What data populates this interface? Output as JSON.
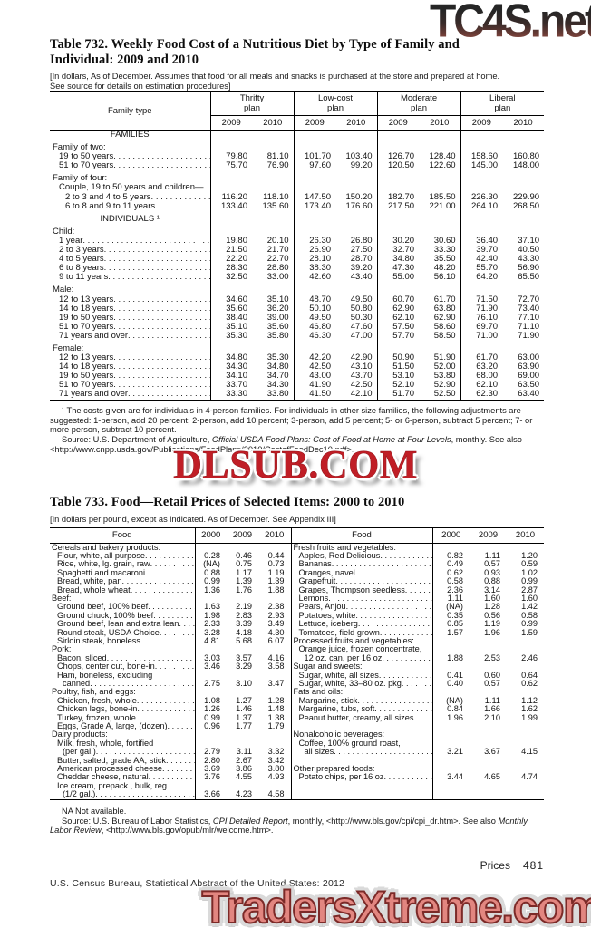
{
  "watermarks": {
    "top": "TC4S.net",
    "middle": "DLSUB.COM",
    "bottom": "TradersXtreme.com"
  },
  "colors": {
    "dlsub_red": "#c01e26",
    "traders_fill": "#e28680",
    "traders_stroke": "#7c2a28",
    "tc4s_top": "#262626",
    "tc4s_bottom": "#91524a"
  },
  "table732": {
    "title_l1": "Table 732. Weekly Food Cost of a Nutritious Diet by Type of Family and",
    "title_l2": "Individual: 2009 and 2010",
    "note_l1": "[In dollars, As of December. Assumes that food for all meals and snacks is purchased at the store and prepared at home.",
    "note_l2": "See source for details on estimation procedures]",
    "stub_header": "Family type",
    "col_groups": [
      {
        "line1": "Thrifty",
        "line2": "plan"
      },
      {
        "line1": "Low-cost",
        "line2": "plan"
      },
      {
        "line1": "Moderate",
        "line2": "plan"
      },
      {
        "line1": "Liberal",
        "line2": "plan"
      }
    ],
    "years": [
      "2009",
      "2010"
    ],
    "rows": [
      {
        "t": "center",
        "label": "FAMILIES"
      },
      {
        "t": "gap"
      },
      {
        "t": "cat",
        "label": "Family of two:",
        "ind": 0
      },
      {
        "t": "item",
        "label": "19 to 50 years",
        "ind": 1,
        "v": [
          "79.80",
          "81.10",
          "101.70",
          "103.40",
          "126.70",
          "128.40",
          "158.60",
          "160.80"
        ]
      },
      {
        "t": "item",
        "label": "51 to 70 years",
        "ind": 1,
        "v": [
          "75.70",
          "76.90",
          "97.60",
          "99.20",
          "120.50",
          "122.60",
          "145.00",
          "148.00"
        ]
      },
      {
        "t": "gap"
      },
      {
        "t": "cat",
        "label": "Family of four:",
        "ind": 0
      },
      {
        "t": "cat",
        "label": "Couple, 19 to 50 years and children—",
        "ind": 1
      },
      {
        "t": "item",
        "label": "2 to 3 and 4 to 5 years",
        "ind": 2,
        "v": [
          "116.20",
          "118.10",
          "147.50",
          "150.20",
          "182.70",
          "185.50",
          "226.30",
          "229.90"
        ]
      },
      {
        "t": "item",
        "label": "6 to 8 and 9 to 11 years",
        "ind": 2,
        "v": [
          "133.40",
          "135.60",
          "173.40",
          "176.60",
          "217.50",
          "221.00",
          "264.10",
          "268.50"
        ]
      },
      {
        "t": "gap"
      },
      {
        "t": "center",
        "label": "INDIVIDUALS ¹"
      },
      {
        "t": "gap"
      },
      {
        "t": "cat",
        "label": "Child:",
        "ind": 0
      },
      {
        "t": "item",
        "label": "1 year",
        "ind": 1,
        "v": [
          "19.80",
          "20.10",
          "26.30",
          "26.80",
          "30.20",
          "30.60",
          "36.40",
          "37.10"
        ]
      },
      {
        "t": "item",
        "label": "2 to 3 years",
        "ind": 1,
        "v": [
          "21.50",
          "21.70",
          "26.90",
          "27.50",
          "32.70",
          "33.30",
          "39.70",
          "40.50"
        ]
      },
      {
        "t": "item",
        "label": "4 to 5 years",
        "ind": 1,
        "v": [
          "22.20",
          "22.70",
          "28.10",
          "28.70",
          "34.80",
          "35.50",
          "42.40",
          "43.30"
        ]
      },
      {
        "t": "item",
        "label": "6 to 8 years",
        "ind": 1,
        "v": [
          "28.30",
          "28.80",
          "38.30",
          "39.20",
          "47.30",
          "48.20",
          "55.70",
          "56.90"
        ]
      },
      {
        "t": "item",
        "label": "9 to 11 years",
        "ind": 1,
        "v": [
          "32.50",
          "33.00",
          "42.60",
          "43.40",
          "55.00",
          "56.10",
          "64.20",
          "65.50"
        ]
      },
      {
        "t": "gap"
      },
      {
        "t": "cat",
        "label": "Male:",
        "ind": 0
      },
      {
        "t": "item",
        "label": "12 to 13 years",
        "ind": 1,
        "v": [
          "34.60",
          "35.10",
          "48.70",
          "49.50",
          "60.70",
          "61.70",
          "71.50",
          "72.70"
        ]
      },
      {
        "t": "item",
        "label": "14 to 18 years",
        "ind": 1,
        "v": [
          "35.60",
          "36.20",
          "50.10",
          "50.80",
          "62.90",
          "63.80",
          "71.90",
          "73.40"
        ]
      },
      {
        "t": "item",
        "label": "19 to 50 years",
        "ind": 1,
        "v": [
          "38.40",
          "39.00",
          "49.50",
          "50.30",
          "62.10",
          "62.90",
          "76.10",
          "77.10"
        ]
      },
      {
        "t": "item",
        "label": "51 to 70 years",
        "ind": 1,
        "v": [
          "35.10",
          "35.60",
          "46.80",
          "47.60",
          "57.50",
          "58.60",
          "69.70",
          "71.10"
        ]
      },
      {
        "t": "item",
        "label": "71 years and over",
        "ind": 1,
        "v": [
          "35.30",
          "35.80",
          "46.30",
          "47.00",
          "57.70",
          "58.50",
          "71.00",
          "71.90"
        ]
      },
      {
        "t": "gap"
      },
      {
        "t": "cat",
        "label": "Female:",
        "ind": 0
      },
      {
        "t": "item",
        "label": "12 to 13 years",
        "ind": 1,
        "v": [
          "34.80",
          "35.30",
          "42.20",
          "42.90",
          "50.90",
          "51.90",
          "61.70",
          "63.00"
        ]
      },
      {
        "t": "item",
        "label": "14 to 18 years",
        "ind": 1,
        "v": [
          "34.30",
          "34.80",
          "42.50",
          "43.10",
          "51.50",
          "52.00",
          "63.20",
          "63.90"
        ]
      },
      {
        "t": "item",
        "label": "19 to 50 years",
        "ind": 1,
        "v": [
          "34.10",
          "34.70",
          "43.00",
          "43.70",
          "53.10",
          "53.80",
          "68.00",
          "69.00"
        ]
      },
      {
        "t": "item",
        "label": "51 to 70 years",
        "ind": 1,
        "v": [
          "33.70",
          "34.30",
          "41.90",
          "42.50",
          "52.10",
          "52.90",
          "62.10",
          "63.50"
        ]
      },
      {
        "t": "item",
        "label": "71 years and over",
        "ind": 1,
        "v": [
          "33.30",
          "33.80",
          "41.50",
          "42.10",
          "51.70",
          "52.50",
          "62.30",
          "63.40"
        ]
      }
    ],
    "footnote": "¹ The costs given are for individuals in 4-person families. For individuals in other size families, the following adjustments are suggested: 1-person, add 20 percent; 2-person, add 10 percent; 3-person, add 5 percent; 5- or 6-person, subtract 5 percent; 7- or more person, subtract 10 percent.",
    "source_prefix": "Source: U.S. Department of Agriculture, ",
    "source_italic": "Official USDA Food Plans: Cost of Food at Home at Four Levels",
    "source_suffix": ", monthly. See also <http://www.cnpp.usda.gov/Publications/FoodPlans/2010/CostofFoodDec10.pdf>."
  },
  "table733": {
    "title": "Table 733. Food—Retail Prices of Selected Items: 2000 to 2010",
    "bracket_note": "[In dollars per pound, except as indicated. As of December. See Appendix III]",
    "food_label": "Food",
    "years": [
      "2000",
      "2009",
      "2010"
    ],
    "rows": [
      {
        "l": {
          "t": "cat",
          "label": "Cereals and bakery products:",
          "ind": 0
        },
        "r": {
          "t": "cat",
          "label": "Fresh fruits and vegetables:",
          "ind": 0
        }
      },
      {
        "l": {
          "t": "item",
          "label": "Flour, white, all purpose",
          "ind": 1,
          "v": [
            "0.28",
            "0.46",
            "0.44"
          ]
        },
        "r": {
          "t": "item",
          "label": "Apples, Red Delicious",
          "ind": 1,
          "v": [
            "0.82",
            "1.11",
            "1.20"
          ]
        }
      },
      {
        "l": {
          "t": "item",
          "label": "Rice, white, lg. grain, raw",
          "ind": 1,
          "v": [
            "(NA)",
            "0.75",
            "0.73"
          ]
        },
        "r": {
          "t": "item",
          "label": "Bananas",
          "ind": 1,
          "v": [
            "0.49",
            "0.57",
            "0.59"
          ]
        }
      },
      {
        "l": {
          "t": "item",
          "label": "Spaghetti and macaroni",
          "ind": 1,
          "v": [
            "0.88",
            "1.17",
            "1.19"
          ]
        },
        "r": {
          "t": "item",
          "label": "Oranges, navel",
          "ind": 1,
          "v": [
            "0.62",
            "0.93",
            "1.02"
          ]
        }
      },
      {
        "l": {
          "t": "item",
          "label": "Bread, white, pan",
          "ind": 1,
          "v": [
            "0.99",
            "1.39",
            "1.39"
          ]
        },
        "r": {
          "t": "item",
          "label": "Grapefruit",
          "ind": 1,
          "v": [
            "0.58",
            "0.88",
            "0.99"
          ]
        }
      },
      {
        "l": {
          "t": "item",
          "label": "Bread, whole wheat",
          "ind": 1,
          "v": [
            "1.36",
            "1.76",
            "1.88"
          ]
        },
        "r": {
          "t": "item",
          "label": "Grapes, Thompson seedless",
          "ind": 1,
          "v": [
            "2.36",
            "3.14",
            "2.87"
          ]
        }
      },
      {
        "l": {
          "t": "cat",
          "label": "Beef:",
          "ind": 0
        },
        "r": {
          "t": "item",
          "label": "Lemons",
          "ind": 1,
          "v": [
            "1.11",
            "1.60",
            "1.60"
          ]
        }
      },
      {
        "l": {
          "t": "item",
          "label": "Ground beef, 100% beef",
          "ind": 1,
          "v": [
            "1.63",
            "2.19",
            "2.38"
          ]
        },
        "r": {
          "t": "item",
          "label": "Pears, Anjou",
          "ind": 1,
          "v": [
            "(NA)",
            "1.28",
            "1.42"
          ]
        }
      },
      {
        "l": {
          "t": "item",
          "label": "Ground chuck, 100% beef",
          "ind": 1,
          "v": [
            "1.98",
            "2.83",
            "2.93"
          ]
        },
        "r": {
          "t": "item",
          "label": "Potatoes, white",
          "ind": 1,
          "v": [
            "0.35",
            "0.56",
            "0.58"
          ]
        }
      },
      {
        "l": {
          "t": "item",
          "label": "Ground beef, lean and extra lean",
          "ind": 1,
          "v": [
            "2.33",
            "3.39",
            "3.49"
          ]
        },
        "r": {
          "t": "item",
          "label": "Lettuce, iceberg",
          "ind": 1,
          "v": [
            "0.85",
            "1.19",
            "0.99"
          ]
        }
      },
      {
        "l": {
          "t": "item",
          "label": "Round steak, USDA Choice",
          "ind": 1,
          "v": [
            "3.28",
            "4.18",
            "4.30"
          ]
        },
        "r": {
          "t": "item",
          "label": "Tomatoes, field grown",
          "ind": 1,
          "v": [
            "1.57",
            "1.96",
            "1.59"
          ]
        }
      },
      {
        "l": {
          "t": "item",
          "label": "Sirloin steak, boneless",
          "ind": 1,
          "v": [
            "4.81",
            "5.68",
            "6.07"
          ]
        },
        "r": {
          "t": "cat",
          "label": "Processed fruits and vegetables:",
          "ind": 0
        }
      },
      {
        "l": {
          "t": "cat",
          "label": "Pork:",
          "ind": 0
        },
        "r": {
          "t": "cont",
          "label": "Orange juice, frozen concentrate,",
          "ind": 1
        }
      },
      {
        "l": {
          "t": "item",
          "label": "Bacon, sliced",
          "ind": 1,
          "v": [
            "3.03",
            "3.57",
            "4.16"
          ]
        },
        "r": {
          "t": "item",
          "label": "12 oz. can, per 16 oz",
          "ind": 2,
          "v": [
            "1.88",
            "2.53",
            "2.46"
          ]
        }
      },
      {
        "l": {
          "t": "item",
          "label": "Chops, center cut, bone-in",
          "ind": 1,
          "v": [
            "3.46",
            "3.29",
            "3.58"
          ]
        },
        "r": {
          "t": "cat",
          "label": "Sugar and sweets:",
          "ind": 0
        }
      },
      {
        "l": {
          "t": "cont",
          "label": "Ham, boneless, excluding",
          "ind": 1
        },
        "r": {
          "t": "item",
          "label": "Sugar, white, all sizes",
          "ind": 1,
          "v": [
            "0.41",
            "0.60",
            "0.64"
          ]
        }
      },
      {
        "l": {
          "t": "item",
          "label": "canned",
          "ind": 2,
          "v": [
            "2.75",
            "3.10",
            "3.47"
          ]
        },
        "r": {
          "t": "item",
          "label": "Sugar, white, 33–80 oz. pkg",
          "ind": 1,
          "v": [
            "0.40",
            "0.57",
            "0.62"
          ]
        }
      },
      {
        "l": {
          "t": "cat",
          "label": "Poultry, fish, and eggs:",
          "ind": 0
        },
        "r": {
          "t": "cat",
          "label": "Fats and oils:",
          "ind": 0
        }
      },
      {
        "l": {
          "t": "item",
          "label": "Chicken, fresh, whole",
          "ind": 1,
          "v": [
            "1.08",
            "1.27",
            "1.28"
          ]
        },
        "r": {
          "t": "item",
          "label": "Margarine, stick",
          "ind": 1,
          "v": [
            "(NA)",
            "1.11",
            "1.12"
          ]
        }
      },
      {
        "l": {
          "t": "item",
          "label": "Chicken legs, bone-in",
          "ind": 1,
          "v": [
            "1.26",
            "1.46",
            "1.48"
          ]
        },
        "r": {
          "t": "item",
          "label": "Margarine, tubs, soft",
          "ind": 1,
          "v": [
            "0.84",
            "1.66",
            "1.62"
          ]
        }
      },
      {
        "l": {
          "t": "item",
          "label": "Turkey, frozen, whole",
          "ind": 1,
          "v": [
            "0.99",
            "1.37",
            "1.38"
          ]
        },
        "r": {
          "t": "item",
          "label": "Peanut butter, creamy, all sizes",
          "ind": 1,
          "v": [
            "1.96",
            "2.10",
            "1.99"
          ]
        }
      },
      {
        "l": {
          "t": "item",
          "label": "Eggs, Grade A, large, (dozen)",
          "ind": 1,
          "v": [
            "0.96",
            "1.77",
            "1.79"
          ]
        },
        "r": {
          "t": "blank"
        }
      },
      {
        "l": {
          "t": "cat",
          "label": "Dairy products:",
          "ind": 0
        },
        "r": {
          "t": "cat",
          "label": "Nonalcoholic beverages:",
          "ind": 0
        }
      },
      {
        "l": {
          "t": "cont",
          "label": "Milk, fresh, whole, fortified",
          "ind": 1
        },
        "r": {
          "t": "cont",
          "label": "Coffee, 100% ground roast,",
          "ind": 1
        }
      },
      {
        "l": {
          "t": "item",
          "label": "(per gal.)",
          "ind": 2,
          "v": [
            "2.79",
            "3.11",
            "3.32"
          ]
        },
        "r": {
          "t": "item",
          "label": "all sizes",
          "ind": 2,
          "v": [
            "3.21",
            "3.67",
            "4.15"
          ]
        }
      },
      {
        "l": {
          "t": "item",
          "label": "Butter, salted, grade AA, stick",
          "ind": 1,
          "v": [
            "2.80",
            "2.67",
            "3.42"
          ]
        },
        "r": {
          "t": "blank"
        }
      },
      {
        "l": {
          "t": "item",
          "label": "American processed cheese",
          "ind": 1,
          "v": [
            "3.69",
            "3.86",
            "3.80"
          ]
        },
        "r": {
          "t": "cat",
          "label": "Other prepared foods:",
          "ind": 0
        }
      },
      {
        "l": {
          "t": "item",
          "label": "Cheddar cheese, natural",
          "ind": 1,
          "v": [
            "3.76",
            "4.55",
            "4.93"
          ]
        },
        "r": {
          "t": "item",
          "label": "Potato chips, per 16 oz",
          "ind": 1,
          "v": [
            "3.44",
            "4.65",
            "4.74"
          ]
        }
      },
      {
        "l": {
          "t": "cont",
          "label": "Ice cream, prepack., bulk, reg.",
          "ind": 1
        },
        "r": {
          "t": "blank"
        }
      },
      {
        "l": {
          "t": "item",
          "label": "(1/2 gal.)",
          "ind": 2,
          "v": [
            "3.66",
            "4.23",
            "4.58"
          ]
        },
        "r": {
          "t": "blank"
        }
      }
    ],
    "na_note": "NA Not available.",
    "source_prefix": "Source: U.S. Bureau of Labor Statistics, ",
    "source_italic1": "CPI Detailed Report",
    "source_mid": ", monthly, <http://www.bls.gov/cpi/cpi_dr.htm>. See also ",
    "source_italic2": "Monthly Labor Review",
    "source_suffix": ", <http://www.bls.gov/opub/mlr/welcome.htm>."
  },
  "footer": {
    "page_label": "Prices",
    "page_number": "481",
    "credit": "U.S. Census Bureau, Statistical Abstract of the United States: 2012"
  }
}
